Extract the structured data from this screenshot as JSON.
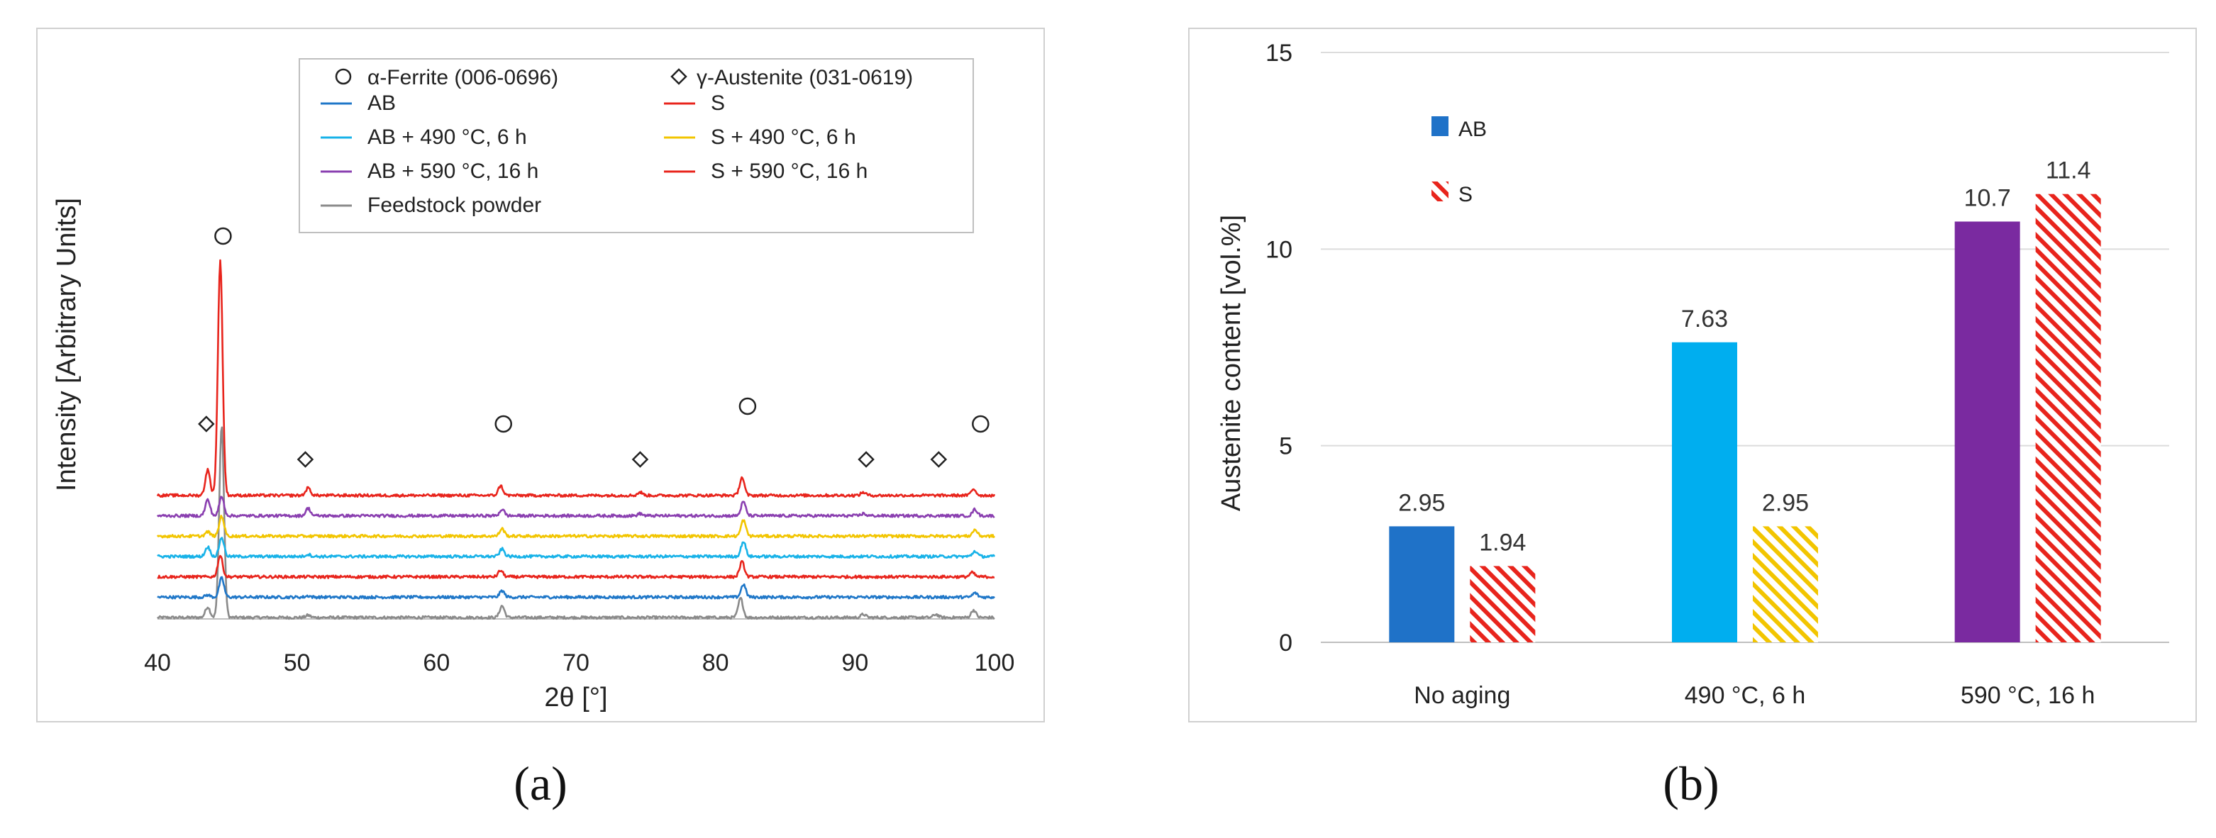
{
  "chart_data": [
    {
      "type": "line",
      "panel_label": "(a)",
      "xlabel": "2θ [°]",
      "ylabel": "Intensity [Arbitrary Units]",
      "xlim": [
        40,
        100
      ],
      "xticks": [
        40,
        50,
        60,
        70,
        80,
        90,
        100
      ],
      "legend_position": "top",
      "phase_legend": [
        {
          "marker": "circle",
          "label": "α-Ferrite (006-0696)"
        },
        {
          "marker": "diamond",
          "label": "γ-Austenite (031-0619)"
        }
      ],
      "series": [
        {
          "name": "AB",
          "color": "#1f77c8",
          "offset": 1,
          "peaks": [
            [
              43.6,
              0.1
            ],
            [
              44.6,
              0.9
            ],
            [
              50.8,
              0.06
            ],
            [
              64.7,
              0.3
            ],
            [
              82.0,
              0.6
            ],
            [
              98.6,
              0.2
            ]
          ]
        },
        {
          "name": "S",
          "color": "#e8241c",
          "offset": 2,
          "peaks": [
            [
              44.5,
              1.0
            ],
            [
              64.6,
              0.3
            ],
            [
              81.9,
              0.7
            ],
            [
              98.4,
              0.2
            ]
          ]
        },
        {
          "name": "AB + 490 °C, 6 h",
          "color": "#17b2e8",
          "offset": 3,
          "peaks": [
            [
              43.6,
              0.45
            ],
            [
              44.6,
              0.9
            ],
            [
              50.8,
              0.1
            ],
            [
              64.7,
              0.35
            ],
            [
              82.0,
              0.7
            ],
            [
              98.6,
              0.25
            ]
          ]
        },
        {
          "name": "S + 490 °C, 6 h",
          "color": "#f2c500",
          "offset": 4,
          "peaks": [
            [
              43.6,
              0.2
            ],
            [
              44.6,
              0.95
            ],
            [
              64.7,
              0.35
            ],
            [
              82.0,
              0.75
            ],
            [
              98.6,
              0.3
            ]
          ]
        },
        {
          "name": "AB + 590 °C, 16 h",
          "color": "#8a3fb0",
          "offset": 5,
          "peaks": [
            [
              43.6,
              0.75
            ],
            [
              44.6,
              0.9
            ],
            [
              50.8,
              0.35
            ],
            [
              64.7,
              0.3
            ],
            [
              74.6,
              0.1
            ],
            [
              82.0,
              0.65
            ],
            [
              90.6,
              0.1
            ],
            [
              98.6,
              0.3
            ]
          ]
        },
        {
          "name": "S + 590 °C, 16 h",
          "color": "#e8241c",
          "offset": 6,
          "peaks": [
            [
              43.6,
              1.2
            ],
            [
              44.5,
              11.0
            ],
            [
              50.8,
              0.35
            ],
            [
              64.6,
              0.45
            ],
            [
              74.6,
              0.15
            ],
            [
              81.9,
              0.85
            ],
            [
              90.6,
              0.15
            ],
            [
              98.5,
              0.3
            ]
          ]
        },
        {
          "name": "Feedstock powder",
          "color": "#8a8a8a",
          "offset": 0,
          "peaks": [
            [
              43.6,
              0.5
            ],
            [
              44.6,
              9.0
            ],
            [
              50.8,
              0.1
            ],
            [
              64.7,
              0.55
            ],
            [
              81.8,
              0.9
            ],
            [
              90.6,
              0.15
            ],
            [
              95.8,
              0.15
            ],
            [
              98.5,
              0.35
            ]
          ]
        }
      ],
      "annotations": [
        {
          "marker": "circle",
          "x": 44.7,
          "level": 5.4
        },
        {
          "marker": "diamond",
          "x": 43.5,
          "level": 2.75
        },
        {
          "marker": "diamond",
          "x": 50.6,
          "level": 2.25
        },
        {
          "marker": "circle",
          "x": 64.8,
          "level": 2.75
        },
        {
          "marker": "diamond",
          "x": 74.6,
          "level": 2.25
        },
        {
          "marker": "circle",
          "x": 82.3,
          "level": 3.0
        },
        {
          "marker": "diamond",
          "x": 90.8,
          "level": 2.25
        },
        {
          "marker": "diamond",
          "x": 96.0,
          "level": 2.25
        },
        {
          "marker": "circle",
          "x": 99.0,
          "level": 2.75
        }
      ]
    },
    {
      "type": "bar",
      "panel_label": "(b)",
      "categories": [
        "No aging",
        "490 °C, 6 h",
        "590 °C, 16 h"
      ],
      "series": [
        {
          "name": "AB",
          "values": [
            2.95,
            7.63,
            10.7
          ],
          "labels": [
            "2.95",
            "7.63",
            "10.7"
          ],
          "colors": [
            "#1f72c8",
            "#00aeef",
            "#7a2aa0"
          ],
          "hatched": false
        },
        {
          "name": "S",
          "values": [
            1.94,
            2.95,
            11.4
          ],
          "labels": [
            "1.94",
            "2.95",
            "11.4"
          ],
          "colors": [
            "#e8241c",
            "#f2c500",
            "#e8241c"
          ],
          "hatched": true
        }
      ],
      "ylabel": "Austenite content [vol.%]",
      "xlabel": "",
      "ylim": [
        0,
        15
      ],
      "yticks": [
        0,
        5,
        10,
        15
      ],
      "legend_position": "top-left",
      "legend_colors": {
        "AB": "#1f72c8",
        "S": "#e8241c"
      }
    }
  ]
}
